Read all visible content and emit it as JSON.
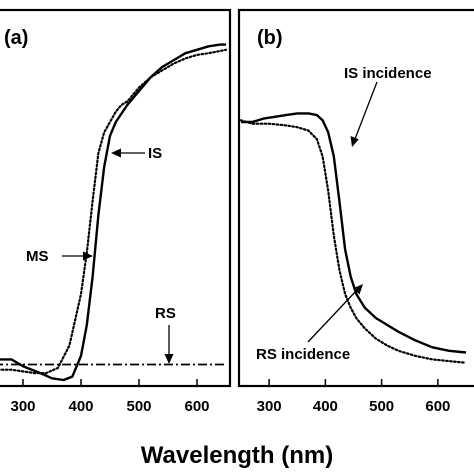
{
  "chart_data": [
    {
      "panel": "(a)",
      "type": "line",
      "xlabel": "Wavelength (nm)",
      "xlim": [
        250,
        650
      ],
      "ylim": [
        0,
        1
      ],
      "xticks": [
        300,
        400,
        500,
        600
      ],
      "series": [
        {
          "name": "IS",
          "style": "solid",
          "x": [
            250,
            280,
            300,
            330,
            350,
            370,
            385,
            400,
            410,
            420,
            430,
            440,
            450,
            460,
            480,
            500,
            520,
            540,
            560,
            580,
            600,
            620,
            640,
            650
          ],
          "y": [
            0.06,
            0.06,
            0.04,
            0.02,
            0.005,
            0.0,
            0.01,
            0.07,
            0.16,
            0.3,
            0.48,
            0.62,
            0.71,
            0.75,
            0.8,
            0.84,
            0.88,
            0.91,
            0.93,
            0.95,
            0.96,
            0.97,
            0.975,
            0.975
          ]
        },
        {
          "name": "MS",
          "style": "dotted",
          "x": [
            250,
            280,
            300,
            320,
            340,
            360,
            380,
            400,
            410,
            420,
            430,
            440,
            450,
            460,
            470,
            480,
            500,
            520,
            540,
            560,
            580,
            600,
            620,
            650
          ],
          "y": [
            0.03,
            0.03,
            0.025,
            0.02,
            0.02,
            0.035,
            0.1,
            0.25,
            0.37,
            0.52,
            0.66,
            0.72,
            0.75,
            0.78,
            0.8,
            0.81,
            0.85,
            0.88,
            0.9,
            0.92,
            0.935,
            0.945,
            0.95,
            0.96
          ]
        },
        {
          "name": "RS",
          "style": "dash-dot",
          "x": [
            250,
            650
          ],
          "y": [
            0.045,
            0.045
          ]
        }
      ],
      "annotations": [
        "IS",
        "MS",
        "RS"
      ]
    },
    {
      "panel": "(b)",
      "type": "line",
      "xlim": [
        250,
        650
      ],
      "ylim": [
        0,
        1
      ],
      "xticks": [
        300,
        400,
        500,
        600
      ],
      "series": [
        {
          "name": "IS incidence",
          "style": "solid",
          "x": [
            250,
            270,
            290,
            310,
            330,
            350,
            370,
            385,
            395,
            405,
            415,
            425,
            435,
            445,
            455,
            470,
            490,
            510,
            530,
            560,
            590,
            620,
            650
          ],
          "y": [
            0.75,
            0.75,
            0.76,
            0.765,
            0.77,
            0.775,
            0.775,
            0.77,
            0.755,
            0.72,
            0.65,
            0.52,
            0.38,
            0.3,
            0.25,
            0.21,
            0.18,
            0.16,
            0.14,
            0.115,
            0.095,
            0.085,
            0.08
          ]
        },
        {
          "name": "RS incidence",
          "style": "dotted",
          "x": [
            250,
            270,
            300,
            330,
            350,
            370,
            385,
            395,
            405,
            415,
            425,
            435,
            445,
            455,
            470,
            490,
            510,
            530,
            560,
            590,
            620,
            650
          ],
          "y": [
            0.755,
            0.745,
            0.745,
            0.74,
            0.735,
            0.725,
            0.7,
            0.65,
            0.55,
            0.42,
            0.32,
            0.25,
            0.21,
            0.18,
            0.15,
            0.12,
            0.1,
            0.085,
            0.07,
            0.06,
            0.055,
            0.05
          ]
        }
      ],
      "annotations": [
        "IS incidence",
        "RS incidence"
      ]
    }
  ]
}
